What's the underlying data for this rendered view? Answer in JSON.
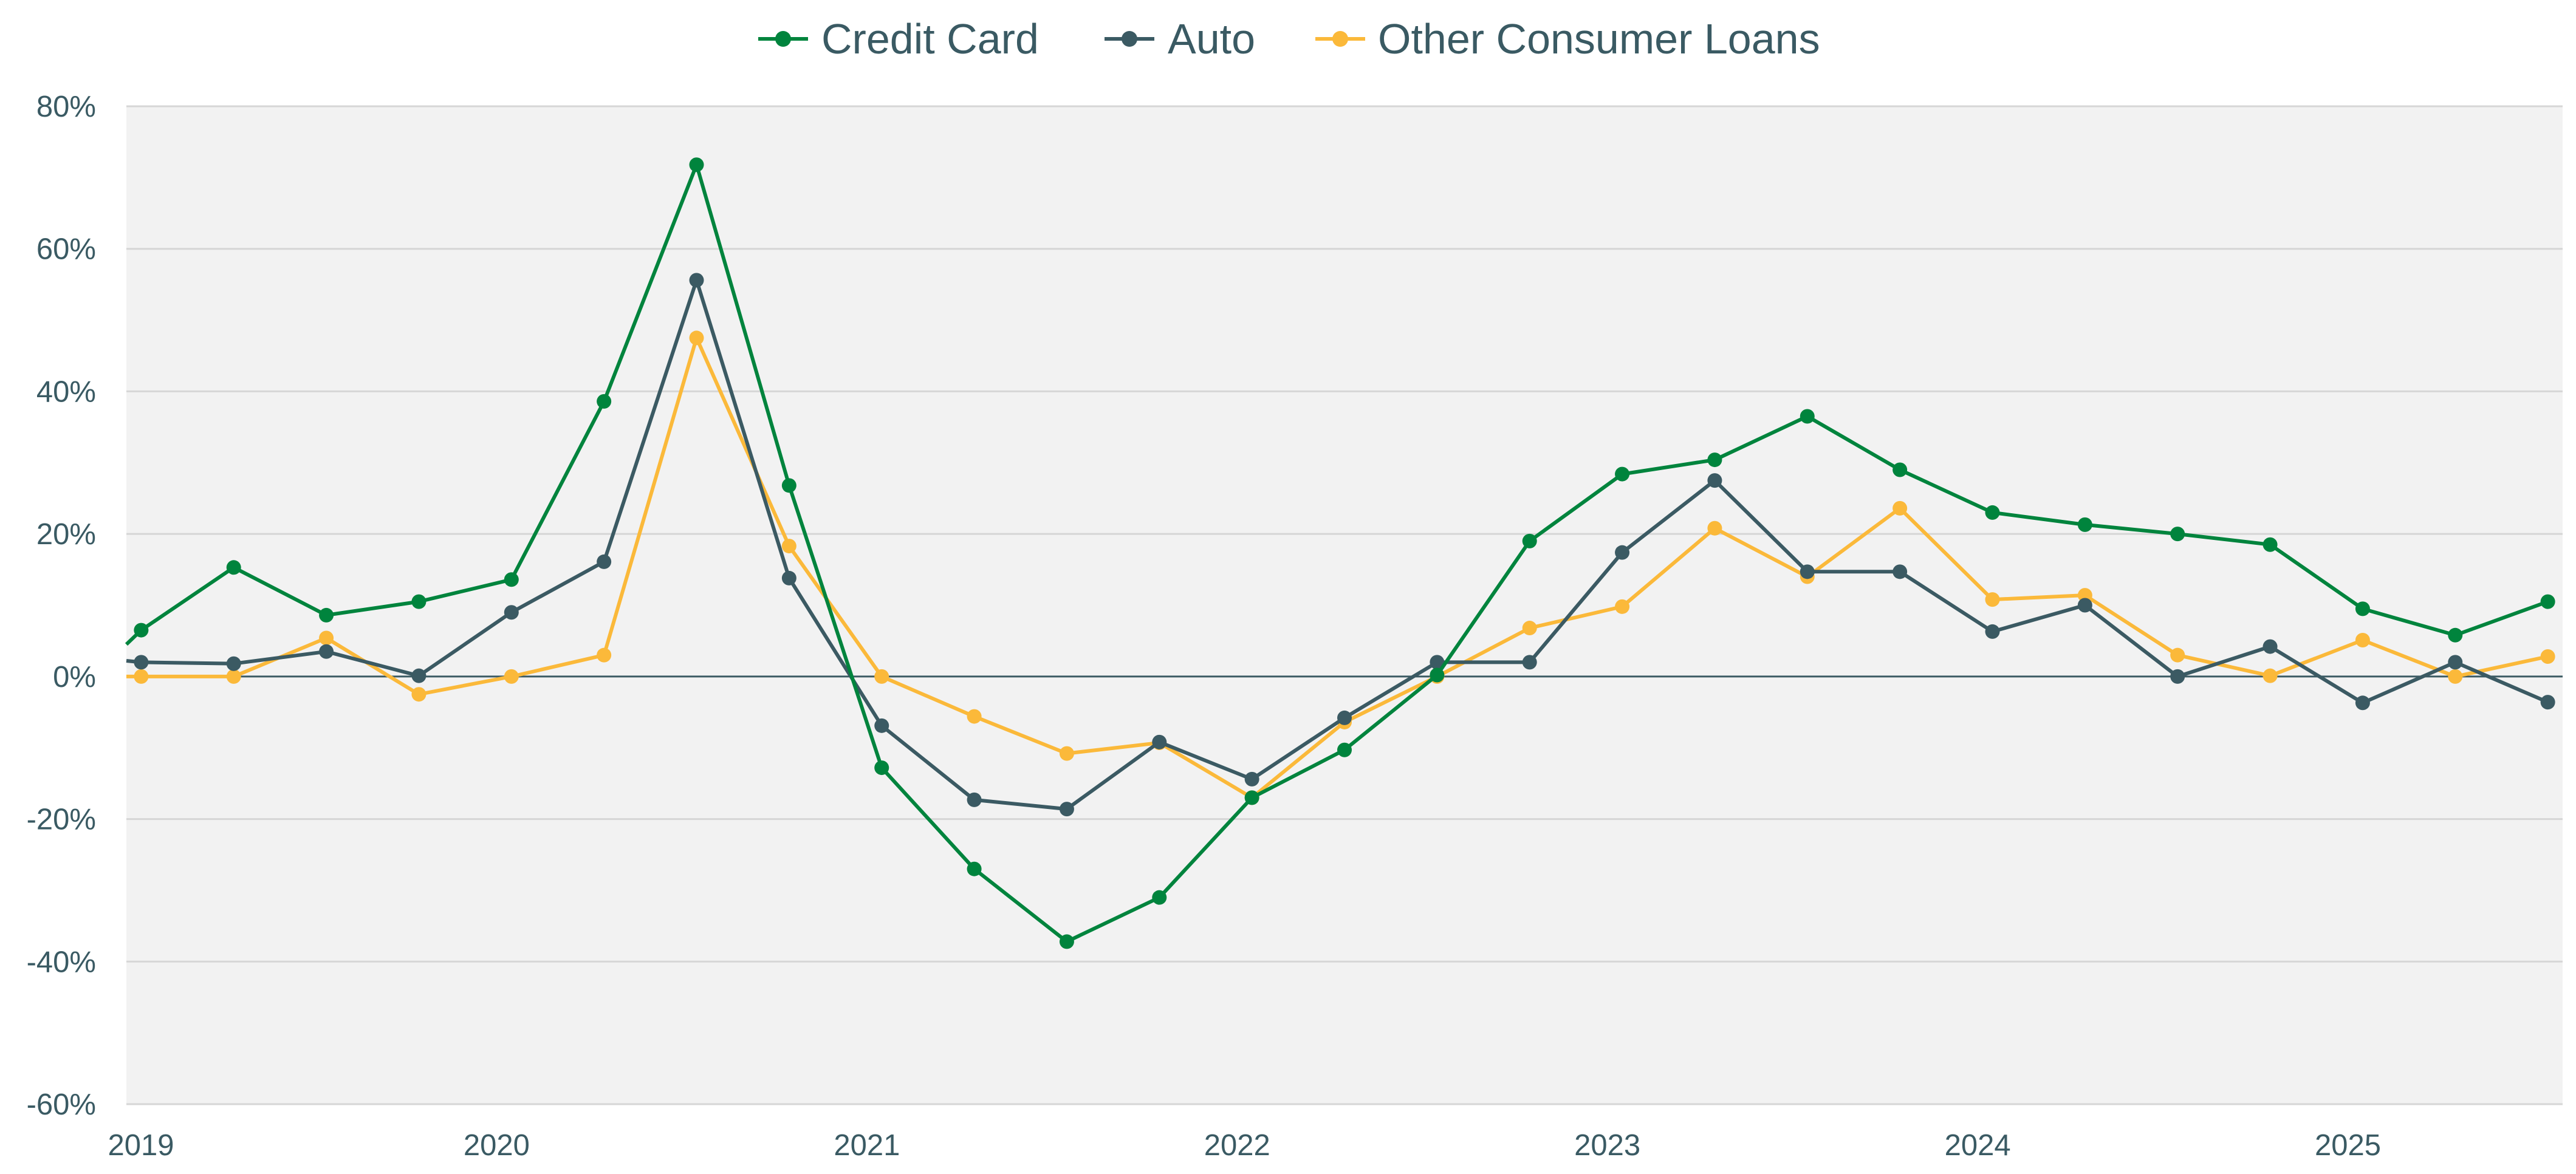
{
  "chart_data": {
    "type": "line",
    "title": "",
    "xlabel": "",
    "ylabel": "",
    "ylim": [
      -60,
      80
    ],
    "y_ticks": [
      80,
      60,
      40,
      20,
      0,
      -20,
      -40,
      -60
    ],
    "y_tick_labels": [
      "80%",
      "60%",
      "40%",
      "20%",
      "0%",
      "-20%",
      "-40%",
      "-60%"
    ],
    "x_range": [
      2019.0,
      2025.58
    ],
    "x_ticks": [
      2019,
      2020,
      2021,
      2022,
      2023,
      2024,
      2025
    ],
    "x_tick_labels": [
      "2019",
      "2020",
      "2021",
      "2022",
      "2023",
      "2024",
      "2025"
    ],
    "grid": true,
    "legend_position": "top-center",
    "background": "#f2f2f2",
    "x": [
      2019.04,
      2019.29,
      2019.54,
      2019.79,
      2020.04,
      2020.29,
      2020.54,
      2020.79,
      2021.04,
      2021.29,
      2021.54,
      2021.79,
      2022.04,
      2022.29,
      2022.54,
      2022.79,
      2023.04,
      2023.29,
      2023.54,
      2023.79,
      2024.04,
      2024.29,
      2024.54,
      2024.79,
      2025.04,
      2025.29,
      2025.54
    ],
    "series": [
      {
        "name": "Credit Card",
        "color": "#00843d",
        "start": [
          2019.0,
          4.5
        ],
        "values": [
          6.5,
          15.3,
          8.6,
          10.5,
          13.6,
          38.6,
          71.8,
          26.8,
          -12.8,
          -27.0,
          -37.2,
          -31.0,
          -17.0,
          -10.3,
          0.2,
          19.0,
          28.4,
          30.4,
          36.5,
          29.0,
          23.0,
          21.3,
          20.0,
          18.5,
          9.5,
          5.8,
          10.5
        ]
      },
      {
        "name": "Auto",
        "color": "#3b5a63",
        "start": [
          2019.0,
          2.2
        ],
        "values": [
          2.0,
          1.8,
          3.5,
          0.1,
          9.0,
          16.1,
          55.6,
          13.8,
          -6.9,
          -17.3,
          -18.6,
          -9.2,
          -14.4,
          -5.8,
          2.0,
          2.0,
          17.4,
          27.5,
          14.7,
          14.7,
          6.3,
          10.0,
          0.0,
          4.2,
          -3.7,
          2.0,
          -3.6
        ]
      },
      {
        "name": "Other Consumer Loans",
        "color": "#fbb93a",
        "start": [
          2019.0,
          0.0
        ],
        "values": [
          0.0,
          0.0,
          5.4,
          -2.5,
          0.0,
          3.0,
          47.5,
          18.3,
          0.0,
          -5.6,
          -10.8,
          -9.3,
          -17.0,
          -6.4,
          0.0,
          6.8,
          9.8,
          20.8,
          14.0,
          23.6,
          10.8,
          11.4,
          3.0,
          0.1,
          5.1,
          0.0,
          2.8
        ]
      }
    ]
  }
}
